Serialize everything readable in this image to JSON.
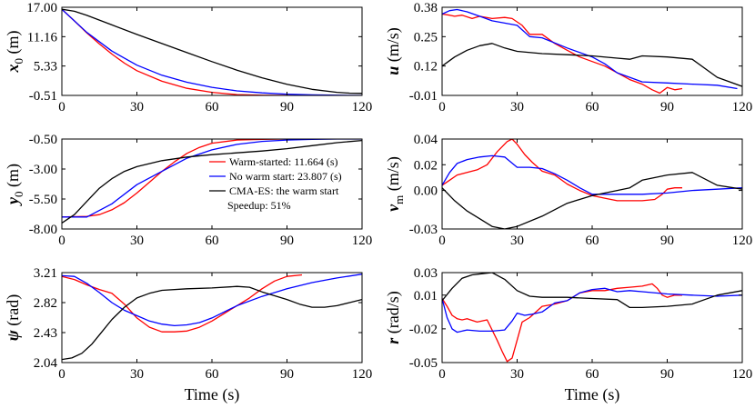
{
  "colors": {
    "warm": "#ff0000",
    "nowarm": "#0000ff",
    "cma": "#000000"
  },
  "legend": {
    "entries": [
      {
        "label": "Warm-started: 11.664 (s)",
        "color": "#ff0000",
        "marker": "line"
      },
      {
        "label": "No warm start: 23.807 (s)",
        "color": "#0000ff",
        "marker": "line"
      },
      {
        "label": "CMA-ES: the warm start",
        "color": "#000000",
        "marker": "line"
      },
      {
        "label": "Speedup: 51%",
        "color": "#000000",
        "marker": "none"
      }
    ]
  },
  "chart_data": [
    {
      "id": "x0",
      "type": "line",
      "ylabel": {
        "main": "x",
        "sub": "0",
        "unit": "(m)"
      },
      "xlim": [
        0,
        120
      ],
      "ylim": [
        -0.51,
        17.0
      ],
      "xticks": [
        "0",
        "30",
        "60",
        "90",
        "120"
      ],
      "yticks": [
        17.0,
        11.16,
        5.33,
        -0.51
      ],
      "ytick_labels": [
        "17.00",
        "11.16",
        "5.33",
        "-0.51"
      ],
      "xlabel": "",
      "series": [
        {
          "name": "Warm-started",
          "color": "#ff0000",
          "x": [
            0,
            5,
            10,
            15,
            20,
            25,
            30,
            40,
            50,
            60,
            70,
            80,
            85,
            90,
            96
          ],
          "y": [
            16.6,
            14.3,
            11.9,
            9.7,
            7.7,
            5.9,
            4.4,
            2.3,
            0.9,
            0.1,
            -0.35,
            -0.48,
            -0.5,
            -0.5,
            -0.51
          ]
        },
        {
          "name": "No warm start",
          "color": "#0000ff",
          "x": [
            0,
            10,
            20,
            30,
            40,
            50,
            60,
            70,
            80,
            90,
            100,
            110,
            120
          ],
          "y": [
            16.6,
            12.0,
            8.3,
            5.5,
            3.5,
            2.1,
            1.1,
            0.4,
            0.0,
            -0.25,
            -0.4,
            -0.48,
            -0.51
          ]
        },
        {
          "name": "CMA-ES",
          "color": "#000000",
          "x": [
            0,
            5,
            10,
            20,
            30,
            40,
            50,
            60,
            70,
            80,
            90,
            100,
            110,
            115,
            120
          ],
          "y": [
            16.6,
            16.2,
            15.4,
            13.5,
            11.6,
            9.8,
            8.0,
            6.2,
            4.5,
            3.0,
            1.7,
            0.7,
            0.1,
            -0.05,
            -0.1
          ]
        }
      ]
    },
    {
      "id": "u",
      "type": "line",
      "ylabel": {
        "main": "u",
        "sub": "",
        "unit": "(m/s)"
      },
      "xlim": [
        0,
        120
      ],
      "ylim": [
        -0.01,
        0.38
      ],
      "xticks": [
        "0",
        "30",
        "60",
        "90",
        "120"
      ],
      "yticks": [
        0.38,
        0.25,
        0.12,
        -0.01
      ],
      "ytick_labels": [
        "0.38",
        "0.25",
        "0.12",
        "-0.01"
      ],
      "xlabel": "",
      "series": [
        {
          "name": "Warm-started",
          "color": "#ff0000",
          "x": [
            0,
            3,
            5,
            8,
            12,
            15,
            20,
            25,
            28,
            32,
            35,
            40,
            45,
            50,
            55,
            60,
            65,
            70,
            75,
            80,
            84,
            87,
            90,
            93,
            96
          ],
          "y": [
            0.35,
            0.345,
            0.34,
            0.345,
            0.33,
            0.34,
            0.33,
            0.335,
            0.33,
            0.3,
            0.26,
            0.26,
            0.22,
            0.19,
            0.16,
            0.14,
            0.12,
            0.09,
            0.06,
            0.04,
            0.015,
            0.0,
            0.025,
            0.015,
            0.02
          ]
        },
        {
          "name": "No warm start",
          "color": "#0000ff",
          "x": [
            0,
            3,
            6,
            10,
            15,
            20,
            25,
            30,
            35,
            40,
            50,
            60,
            65,
            70,
            75,
            80,
            90,
            100,
            110,
            118
          ],
          "y": [
            0.35,
            0.365,
            0.37,
            0.36,
            0.34,
            0.32,
            0.31,
            0.3,
            0.25,
            0.245,
            0.2,
            0.16,
            0.13,
            0.09,
            0.07,
            0.05,
            0.045,
            0.04,
            0.035,
            0.02
          ]
        },
        {
          "name": "CMA-ES",
          "color": "#000000",
          "x": [
            0,
            5,
            10,
            15,
            20,
            25,
            30,
            40,
            50,
            60,
            70,
            75,
            80,
            90,
            100,
            110,
            120
          ],
          "y": [
            0.12,
            0.16,
            0.19,
            0.21,
            0.22,
            0.2,
            0.185,
            0.175,
            0.17,
            0.165,
            0.155,
            0.15,
            0.165,
            0.16,
            0.15,
            0.07,
            0.03
          ]
        }
      ]
    },
    {
      "id": "y0",
      "type": "line",
      "ylabel": {
        "main": "y",
        "sub": "0",
        "unit": "(m)"
      },
      "xlim": [
        0,
        120
      ],
      "ylim": [
        -8.0,
        -0.5
      ],
      "xticks": [
        "0",
        "30",
        "60",
        "90",
        "120"
      ],
      "yticks": [
        -0.5,
        -3.0,
        -5.5,
        -8.0
      ],
      "ytick_labels": [
        "-0.50",
        "-3.00",
        "-5.50",
        "-8.00"
      ],
      "xlabel": "",
      "series": [
        {
          "name": "Warm-started",
          "color": "#ff0000",
          "x": [
            0,
            10,
            15,
            20,
            25,
            30,
            35,
            40,
            45,
            50,
            55,
            60,
            70,
            80,
            90,
            96
          ],
          "y": [
            -7.0,
            -6.95,
            -6.8,
            -6.4,
            -5.8,
            -5.0,
            -4.1,
            -3.2,
            -2.4,
            -1.7,
            -1.2,
            -0.85,
            -0.58,
            -0.52,
            -0.5,
            -0.5
          ]
        },
        {
          "name": "No warm start",
          "color": "#0000ff",
          "x": [
            0,
            10,
            20,
            30,
            40,
            50,
            60,
            70,
            80,
            90,
            100,
            110,
            120
          ],
          "y": [
            -7.0,
            -7.0,
            -5.9,
            -4.3,
            -3.2,
            -2.1,
            -1.4,
            -0.95,
            -0.7,
            -0.58,
            -0.52,
            -0.5,
            -0.5
          ]
        },
        {
          "name": "CMA-ES",
          "color": "#000000",
          "x": [
            0,
            5,
            10,
            15,
            20,
            25,
            30,
            40,
            50,
            60,
            70,
            80,
            90,
            100,
            110,
            120
          ],
          "y": [
            -7.5,
            -6.8,
            -5.7,
            -4.6,
            -3.8,
            -3.2,
            -2.8,
            -2.3,
            -2.0,
            -1.8,
            -1.65,
            -1.5,
            -1.3,
            -1.05,
            -0.8,
            -0.62
          ]
        }
      ]
    },
    {
      "id": "vm",
      "type": "line",
      "ylabel": {
        "main": "v",
        "sub": "m",
        "unit": "(m/s)"
      },
      "xlim": [
        0,
        120
      ],
      "ylim": [
        -0.03,
        0.04
      ],
      "xticks": [
        "0",
        "30",
        "60",
        "90",
        "120"
      ],
      "yticks": [
        0.04,
        0.02,
        0.0,
        -0.03
      ],
      "ytick_labels": [
        "0.04",
        "0.02",
        "0.00",
        "-0.03"
      ],
      "xlabel": "",
      "series": [
        {
          "name": "Warm-started",
          "color": "#ff0000",
          "x": [
            0,
            3,
            6,
            10,
            14,
            18,
            22,
            26,
            28,
            30,
            33,
            36,
            40,
            45,
            50,
            55,
            60,
            65,
            70,
            75,
            80,
            85,
            88,
            90,
            93,
            96
          ],
          "y": [
            0.004,
            0.008,
            0.012,
            0.014,
            0.016,
            0.02,
            0.03,
            0.038,
            0.04,
            0.036,
            0.028,
            0.022,
            0.015,
            0.012,
            0.005,
            0.0,
            -0.004,
            -0.006,
            -0.008,
            -0.008,
            -0.008,
            -0.007,
            -0.003,
            0.001,
            0.002,
            0.002
          ]
        },
        {
          "name": "No warm start",
          "color": "#0000ff",
          "x": [
            0,
            3,
            6,
            10,
            15,
            20,
            25,
            30,
            35,
            40,
            45,
            50,
            55,
            60,
            70,
            80,
            90,
            100,
            110,
            120
          ],
          "y": [
            0.004,
            0.014,
            0.021,
            0.024,
            0.026,
            0.027,
            0.026,
            0.018,
            0.018,
            0.017,
            0.013,
            0.008,
            0.002,
            -0.003,
            -0.003,
            -0.003,
            -0.002,
            0.0,
            0.001,
            0.002
          ]
        },
        {
          "name": "CMA-ES",
          "color": "#000000",
          "x": [
            0,
            5,
            10,
            15,
            20,
            25,
            30,
            40,
            50,
            60,
            70,
            75,
            80,
            90,
            100,
            110,
            120
          ],
          "y": [
            0.002,
            -0.008,
            -0.016,
            -0.022,
            -0.028,
            -0.03,
            -0.028,
            -0.02,
            -0.01,
            -0.004,
            0.0,
            0.002,
            0.008,
            0.012,
            0.014,
            0.004,
            0.001
          ]
        }
      ]
    },
    {
      "id": "psi",
      "type": "line",
      "ylabel": {
        "main": "ψ",
        "sub": "",
        "unit": "(rad)"
      },
      "xlim": [
        0,
        120
      ],
      "ylim": [
        2.04,
        3.21
      ],
      "xticks": [
        "0",
        "30",
        "60",
        "90",
        "120"
      ],
      "yticks": [
        3.21,
        2.82,
        2.43,
        2.04
      ],
      "ytick_labels": [
        "3.21",
        "2.82",
        "2.43",
        "2.04"
      ],
      "xlabel": "Time (s)",
      "series": [
        {
          "name": "Warm-started",
          "color": "#ff0000",
          "x": [
            0,
            5,
            10,
            15,
            20,
            25,
            30,
            35,
            40,
            45,
            50,
            55,
            60,
            65,
            70,
            75,
            80,
            85,
            90,
            96
          ],
          "y": [
            3.16,
            3.12,
            3.05,
            2.99,
            2.94,
            2.8,
            2.62,
            2.5,
            2.44,
            2.44,
            2.45,
            2.5,
            2.58,
            2.68,
            2.78,
            2.88,
            3.0,
            3.1,
            3.16,
            3.18
          ]
        },
        {
          "name": "No warm start",
          "color": "#0000ff",
          "x": [
            0,
            5,
            10,
            15,
            20,
            25,
            30,
            35,
            40,
            45,
            50,
            55,
            60,
            70,
            80,
            90,
            100,
            110,
            120
          ],
          "y": [
            3.17,
            3.16,
            3.07,
            2.95,
            2.82,
            2.72,
            2.65,
            2.58,
            2.54,
            2.52,
            2.53,
            2.56,
            2.62,
            2.78,
            2.9,
            3.0,
            3.08,
            3.14,
            3.19
          ]
        },
        {
          "name": "CMA-ES",
          "color": "#000000",
          "x": [
            0,
            4,
            8,
            12,
            16,
            20,
            25,
            30,
            35,
            40,
            50,
            60,
            70,
            75,
            80,
            90,
            95,
            100,
            105,
            110,
            115,
            120
          ],
          "y": [
            2.08,
            2.1,
            2.16,
            2.28,
            2.44,
            2.6,
            2.76,
            2.88,
            2.94,
            2.98,
            3.0,
            3.01,
            3.03,
            3.02,
            2.96,
            2.86,
            2.8,
            2.76,
            2.76,
            2.78,
            2.82,
            2.86
          ]
        }
      ]
    },
    {
      "id": "r",
      "type": "line",
      "ylabel": {
        "main": "r",
        "sub": "",
        "unit": "(rad/s)"
      },
      "xlim": [
        0,
        120
      ],
      "ylim": [
        -0.05,
        0.03
      ],
      "xticks": [
        "0",
        "30",
        "60",
        "90",
        "120"
      ],
      "yticks": [
        0.03,
        0.01,
        -0.02,
        -0.05
      ],
      "ytick_labels": [
        "0.03",
        "0.01",
        "-0.02",
        "-0.05"
      ],
      "xlabel": "Time (s)",
      "series": [
        {
          "name": "Warm-started",
          "color": "#ff0000",
          "x": [
            0,
            2,
            4,
            6,
            8,
            10,
            14,
            18,
            22,
            24,
            26,
            28,
            30,
            32,
            35,
            40,
            45,
            50,
            55,
            60,
            65,
            70,
            75,
            80,
            84,
            86,
            88,
            90,
            93,
            96
          ],
          "y": [
            0.007,
            0.0,
            -0.008,
            -0.011,
            -0.012,
            -0.011,
            -0.014,
            -0.012,
            -0.03,
            -0.04,
            -0.049,
            -0.046,
            -0.03,
            -0.014,
            -0.01,
            0.0,
            0.002,
            0.005,
            0.012,
            0.014,
            0.014,
            0.016,
            0.017,
            0.018,
            0.02,
            0.016,
            0.01,
            0.008,
            0.01,
            0.01
          ]
        },
        {
          "name": "No warm start",
          "color": "#0000ff",
          "x": [
            0,
            2,
            4,
            6,
            10,
            15,
            20,
            25,
            28,
            30,
            33,
            36,
            40,
            45,
            50,
            55,
            60,
            65,
            70,
            75,
            80,
            90,
            100,
            110,
            120
          ],
          "y": [
            0.007,
            -0.01,
            -0.02,
            -0.023,
            -0.021,
            -0.022,
            -0.022,
            -0.021,
            -0.013,
            -0.006,
            -0.008,
            -0.007,
            -0.005,
            0.003,
            0.005,
            0.012,
            0.015,
            0.016,
            0.013,
            0.014,
            0.013,
            0.011,
            0.01,
            0.009,
            0.01
          ]
        },
        {
          "name": "CMA-ES",
          "color": "#000000",
          "x": [
            0,
            4,
            8,
            12,
            16,
            20,
            25,
            30,
            35,
            40,
            50,
            60,
            70,
            75,
            80,
            90,
            100,
            110,
            120
          ],
          "y": [
            0.005,
            0.016,
            0.025,
            0.028,
            0.029,
            0.03,
            0.024,
            0.014,
            0.009,
            0.008,
            0.008,
            0.007,
            0.006,
            -0.001,
            -0.001,
            0.0,
            0.002,
            0.01,
            0.014
          ]
        }
      ]
    }
  ]
}
